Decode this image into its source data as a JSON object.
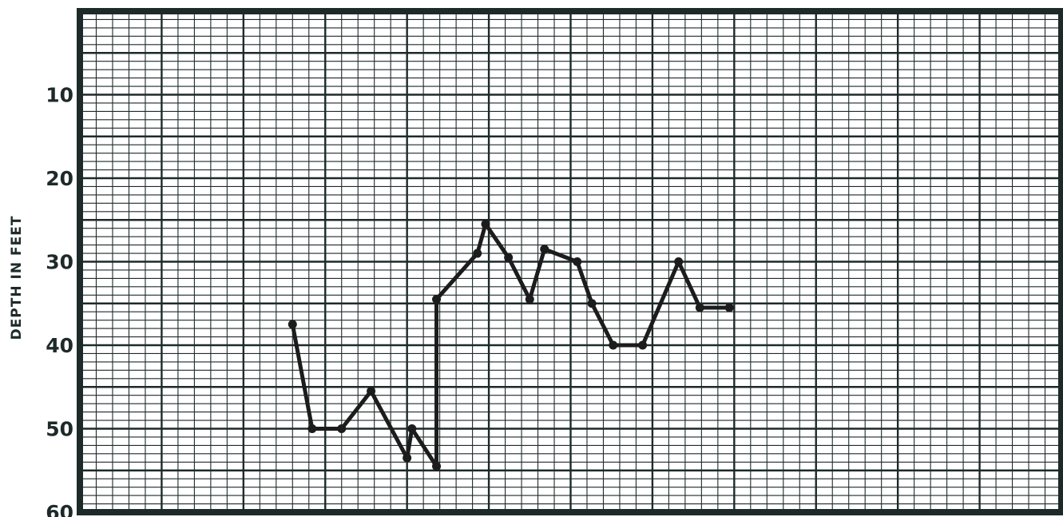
{
  "chart_data": {
    "type": "line",
    "title": "",
    "xlabel": "",
    "ylabel": "DEPTH IN FEET",
    "ylim": [
      0,
      60
    ],
    "y_inverted": true,
    "xlim": [
      0,
      60
    ],
    "yticks": [
      10,
      20,
      30,
      40,
      50,
      60
    ],
    "ytick_labels": [
      "10",
      "20",
      "30",
      "40",
      "50",
      "60"
    ],
    "grid": true,
    "legend": "none",
    "colors": {
      "line": "#1c1c1c",
      "grid": "#1e2a2a",
      "background": "#ffffff"
    },
    "series": [
      {
        "x": [
          13,
          14.2,
          16,
          17.8,
          20,
          20.3,
          21.8,
          21.8,
          24.3,
          24.8,
          26.2,
          27.5,
          28.4,
          30.4,
          31.3,
          32.6,
          34.4,
          36.6,
          37.9,
          39.7
        ],
        "y": [
          37.5,
          50,
          50,
          45.5,
          53.5,
          50,
          54.5,
          34.5,
          29,
          25.5,
          29.5,
          34.5,
          28.5,
          30,
          35,
          40,
          40,
          30,
          35.5,
          35.5
        ]
      }
    ]
  }
}
